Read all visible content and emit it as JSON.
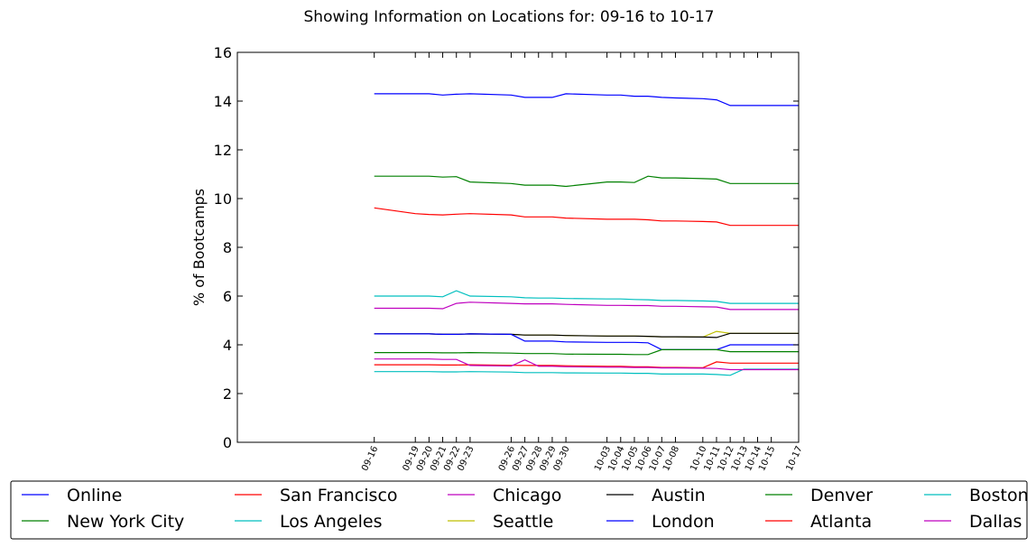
{
  "chart_data": {
    "type": "line",
    "title": "Showing Information on Locations for: 09-16 to 10-17",
    "xlabel": "",
    "ylabel": "% of Bootcamps",
    "ylim": [
      0,
      16
    ],
    "yticks": [
      "0",
      "2",
      "4",
      "6",
      "8",
      "10",
      "12",
      "14",
      "16"
    ],
    "grid": false,
    "legend_position": "bottom",
    "x": [
      "09-16",
      "09-19",
      "09-20",
      "09-21",
      "09-22",
      "09-23",
      "09-26",
      "09-27",
      "09-28",
      "09-29",
      "09-30",
      "10-03",
      "10-04",
      "10-05",
      "10-06",
      "10-07",
      "10-08",
      "10-10",
      "10-11",
      "10-12",
      "10-13",
      "10-14",
      "10-15",
      "10-17"
    ],
    "x_day": [
      0,
      3,
      4,
      5,
      6,
      7,
      10,
      11,
      12,
      13,
      14,
      17,
      18,
      19,
      20,
      21,
      22,
      24,
      25,
      26,
      27,
      28,
      29,
      31
    ],
    "series": [
      {
        "name": "Online",
        "color": "#0000ff",
        "values": [
          14.3,
          14.3,
          14.3,
          14.25,
          14.28,
          14.3,
          14.25,
          14.15,
          14.15,
          14.15,
          14.3,
          14.25,
          14.25,
          14.2,
          14.2,
          14.15,
          14.13,
          14.1,
          14.05,
          13.82,
          13.82,
          13.82,
          13.82,
          13.82
        ]
      },
      {
        "name": "New York City",
        "color": "#008000",
        "values": [
          10.92,
          10.92,
          10.92,
          10.88,
          10.9,
          10.68,
          10.62,
          10.55,
          10.55,
          10.55,
          10.5,
          10.68,
          10.68,
          10.66,
          10.92,
          10.85,
          10.85,
          10.82,
          10.8,
          10.62,
          10.62,
          10.62,
          10.62,
          10.62
        ]
      },
      {
        "name": "San Francisco",
        "color": "#ff0000",
        "values": [
          9.62,
          9.38,
          9.35,
          9.33,
          9.36,
          9.38,
          9.33,
          9.25,
          9.25,
          9.25,
          9.2,
          9.15,
          9.15,
          9.15,
          9.13,
          9.08,
          9.08,
          9.06,
          9.04,
          8.9,
          8.9,
          8.9,
          8.9,
          8.9
        ]
      },
      {
        "name": "Los Angeles",
        "color": "#00bfbf",
        "values": [
          6.0,
          6.0,
          6.0,
          5.97,
          6.22,
          6.0,
          5.97,
          5.93,
          5.92,
          5.92,
          5.9,
          5.88,
          5.88,
          5.86,
          5.85,
          5.82,
          5.82,
          5.8,
          5.78,
          5.7,
          5.7,
          5.7,
          5.7,
          5.7
        ]
      },
      {
        "name": "Chicago",
        "color": "#bf00bf",
        "values": [
          5.5,
          5.5,
          5.5,
          5.48,
          5.7,
          5.75,
          5.7,
          5.68,
          5.68,
          5.68,
          5.66,
          5.62,
          5.62,
          5.61,
          5.61,
          5.58,
          5.58,
          5.56,
          5.55,
          5.45,
          5.45,
          5.45,
          5.45,
          5.45
        ]
      },
      {
        "name": "Seattle",
        "color": "#bfbf00",
        "values": [
          4.45,
          4.45,
          4.45,
          4.43,
          4.43,
          4.45,
          4.43,
          4.4,
          4.4,
          4.4,
          4.38,
          4.36,
          4.36,
          4.36,
          4.35,
          4.33,
          4.33,
          4.32,
          4.55,
          4.47,
          4.47,
          4.47,
          4.47,
          4.47
        ]
      },
      {
        "name": "Austin",
        "color": "#000000",
        "values": [
          4.45,
          4.45,
          4.45,
          4.43,
          4.43,
          4.45,
          4.43,
          4.4,
          4.4,
          4.4,
          4.38,
          4.36,
          4.36,
          4.36,
          4.35,
          4.33,
          4.33,
          4.32,
          4.3,
          4.47,
          4.47,
          4.47,
          4.47,
          4.47
        ]
      },
      {
        "name": "London",
        "color": "#0000ff",
        "values": [
          4.45,
          4.45,
          4.45,
          4.43,
          4.43,
          4.45,
          4.43,
          4.15,
          4.15,
          4.15,
          4.12,
          4.1,
          4.1,
          4.1,
          4.08,
          3.8,
          3.8,
          3.8,
          3.8,
          4.0,
          4.0,
          4.0,
          4.0,
          4.0
        ]
      },
      {
        "name": "Denver",
        "color": "#008000",
        "values": [
          3.68,
          3.68,
          3.68,
          3.67,
          3.67,
          3.68,
          3.66,
          3.64,
          3.64,
          3.64,
          3.62,
          3.61,
          3.61,
          3.6,
          3.6,
          3.8,
          3.8,
          3.8,
          3.8,
          3.72,
          3.72,
          3.72,
          3.72,
          3.72
        ]
      },
      {
        "name": "Atlanta",
        "color": "#ff0000",
        "values": [
          3.18,
          3.18,
          3.18,
          3.17,
          3.17,
          3.18,
          3.16,
          3.15,
          3.15,
          3.15,
          3.14,
          3.12,
          3.12,
          3.1,
          3.1,
          3.07,
          3.07,
          3.06,
          3.3,
          3.25,
          3.25,
          3.25,
          3.25,
          3.25
        ]
      },
      {
        "name": "Boston",
        "color": "#00bfbf",
        "values": [
          2.9,
          2.9,
          2.9,
          2.89,
          2.89,
          2.9,
          2.88,
          2.86,
          2.86,
          2.86,
          2.85,
          2.84,
          2.84,
          2.83,
          2.83,
          2.8,
          2.8,
          2.8,
          2.78,
          2.75,
          3.0,
          3.0,
          3.0,
          3.0
        ]
      },
      {
        "name": "Dallas",
        "color": "#bf00bf",
        "values": [
          3.42,
          3.42,
          3.42,
          3.4,
          3.4,
          3.15,
          3.13,
          3.38,
          3.12,
          3.12,
          3.1,
          3.08,
          3.08,
          3.07,
          3.07,
          3.05,
          3.05,
          3.04,
          3.03,
          2.98,
          2.98,
          2.98,
          2.98,
          2.98
        ]
      }
    ],
    "legend_order": [
      "Online",
      "New York City",
      "San Francisco",
      "Los Angeles",
      "Chicago",
      "Seattle",
      "Austin",
      "London",
      "Denver",
      "Atlanta",
      "Boston",
      "Dallas"
    ]
  }
}
